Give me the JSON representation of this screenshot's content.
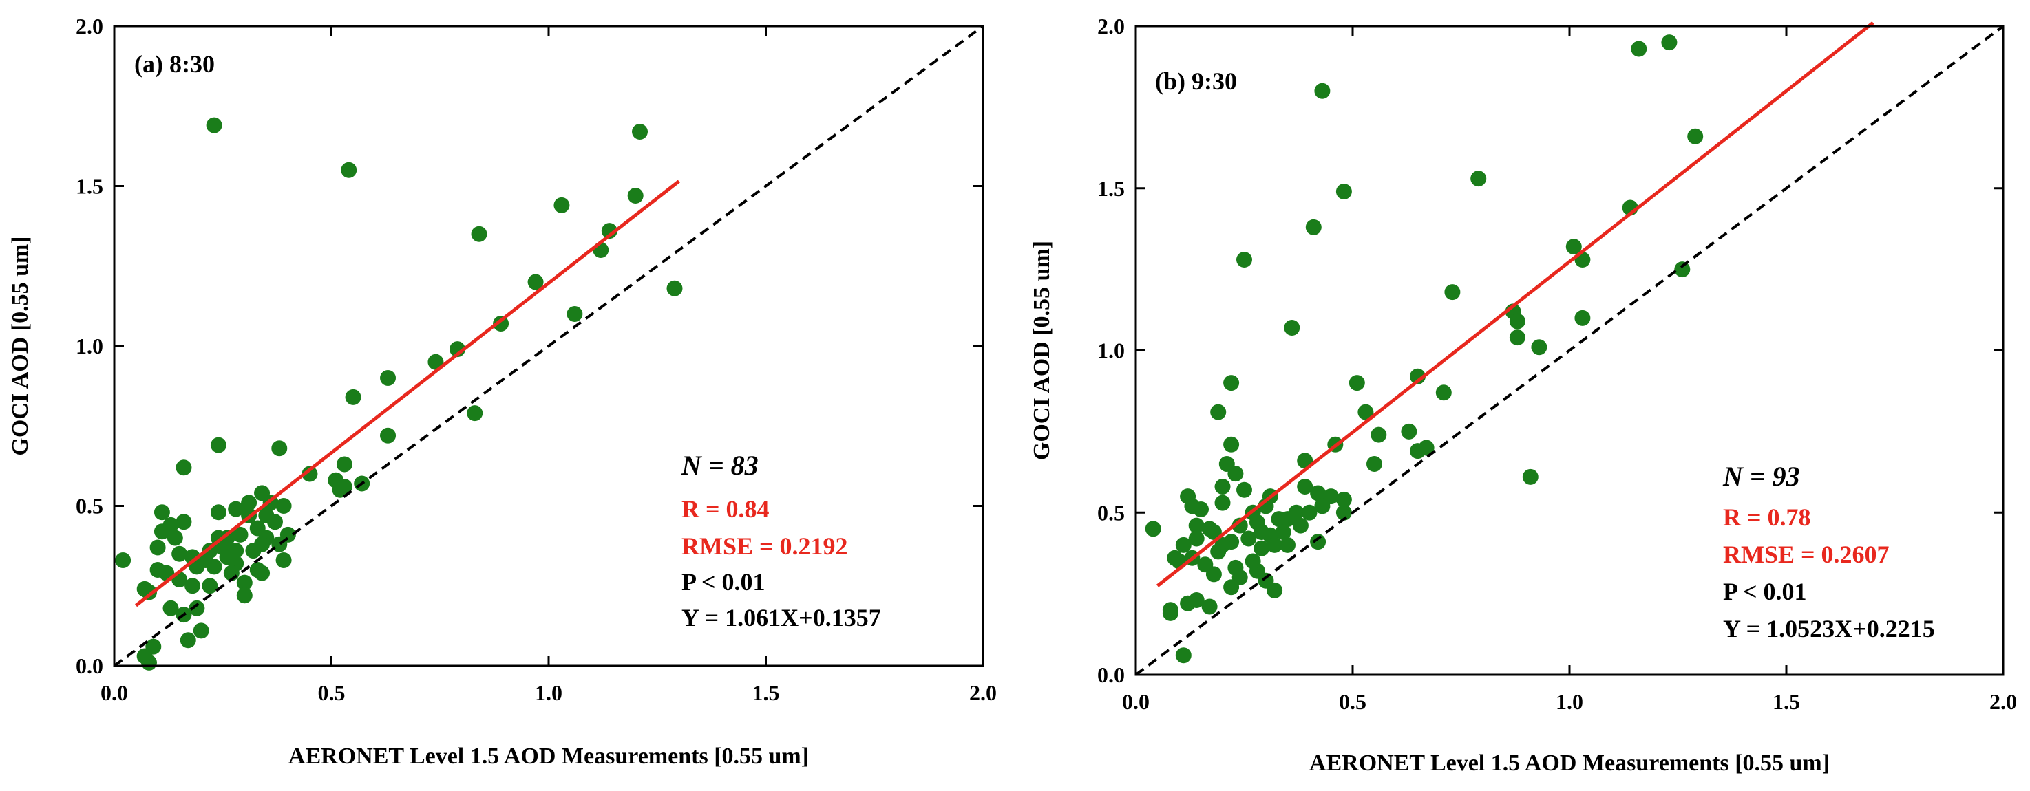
{
  "figure": {
    "colors": {
      "point": "#1a7d1a",
      "fit_line": "#e8281e",
      "one_to_one": "#000000",
      "axes": "#000000"
    }
  },
  "chart_data": [
    {
      "type": "scatter",
      "panel_label": "(a) 8:30",
      "xlabel": "AERONET Level 1.5 AOD Measurements [0.55 um]",
      "ylabel": "GOCI AOD [0.55 um]",
      "xlim": [
        0.0,
        2.0
      ],
      "ylim": [
        0.0,
        2.0
      ],
      "xticks": [
        "0.0",
        "0.5",
        "1.0",
        "1.5",
        "2.0"
      ],
      "yticks": [
        "0.0",
        "0.5",
        "1.0",
        "1.5",
        "2.0"
      ],
      "stats": {
        "n": "N = 83",
        "r": "R = 0.84",
        "rmse": "RMSE = 0.2192",
        "p": "P < 0.01",
        "equation": "Y = 1.061X+0.1357"
      },
      "fit": {
        "slope": 1.061,
        "intercept": 0.1357,
        "x_range": [
          0.05,
          1.3
        ]
      },
      "one_to_one": [
        0.0,
        2.0
      ],
      "points": [
        [
          0.23,
          1.69
        ],
        [
          0.54,
          1.55
        ],
        [
          1.21,
          1.67
        ],
        [
          1.2,
          1.47
        ],
        [
          1.03,
          1.44
        ],
        [
          1.14,
          1.36
        ],
        [
          1.12,
          1.3
        ],
        [
          0.84,
          1.35
        ],
        [
          1.29,
          1.18
        ],
        [
          0.97,
          1.2
        ],
        [
          1.06,
          1.1
        ],
        [
          0.89,
          1.07
        ],
        [
          0.79,
          0.99
        ],
        [
          0.74,
          0.95
        ],
        [
          0.63,
          0.9
        ],
        [
          0.55,
          0.84
        ],
        [
          0.83,
          0.79
        ],
        [
          0.63,
          0.72
        ],
        [
          0.38,
          0.68
        ],
        [
          0.24,
          0.69
        ],
        [
          0.16,
          0.62
        ],
        [
          0.45,
          0.6
        ],
        [
          0.53,
          0.63
        ],
        [
          0.51,
          0.58
        ],
        [
          0.57,
          0.57
        ],
        [
          0.53,
          0.56
        ],
        [
          0.52,
          0.55
        ],
        [
          0.34,
          0.54
        ],
        [
          0.36,
          0.51
        ],
        [
          0.39,
          0.5
        ],
        [
          0.31,
          0.51
        ],
        [
          0.28,
          0.49
        ],
        [
          0.24,
          0.48
        ],
        [
          0.11,
          0.48
        ],
        [
          0.35,
          0.47
        ],
        [
          0.37,
          0.45
        ],
        [
          0.16,
          0.45
        ],
        [
          0.13,
          0.44
        ],
        [
          0.11,
          0.42
        ],
        [
          0.14,
          0.4
        ],
        [
          0.24,
          0.4
        ],
        [
          0.26,
          0.4
        ],
        [
          0.29,
          0.41
        ],
        [
          0.33,
          0.43
        ],
        [
          0.35,
          0.4
        ],
        [
          0.4,
          0.41
        ],
        [
          0.38,
          0.38
        ],
        [
          0.34,
          0.38
        ],
        [
          0.32,
          0.36
        ],
        [
          0.25,
          0.37
        ],
        [
          0.22,
          0.36
        ],
        [
          0.18,
          0.34
        ],
        [
          0.21,
          0.33
        ],
        [
          0.15,
          0.35
        ],
        [
          0.1,
          0.37
        ],
        [
          0.02,
          0.33
        ],
        [
          0.26,
          0.34
        ],
        [
          0.28,
          0.32
        ],
        [
          0.33,
          0.3
        ],
        [
          0.39,
          0.33
        ],
        [
          0.19,
          0.31
        ],
        [
          0.23,
          0.31
        ],
        [
          0.12,
          0.29
        ],
        [
          0.1,
          0.3
        ],
        [
          0.27,
          0.29
        ],
        [
          0.34,
          0.29
        ],
        [
          0.15,
          0.27
        ],
        [
          0.18,
          0.25
        ],
        [
          0.3,
          0.26
        ],
        [
          0.22,
          0.25
        ],
        [
          0.07,
          0.24
        ],
        [
          0.08,
          0.23
        ],
        [
          0.3,
          0.22
        ],
        [
          0.13,
          0.18
        ],
        [
          0.19,
          0.18
        ],
        [
          0.16,
          0.16
        ],
        [
          0.2,
          0.11
        ],
        [
          0.17,
          0.08
        ],
        [
          0.09,
          0.06
        ],
        [
          0.07,
          0.03
        ],
        [
          0.08,
          0.01
        ],
        [
          0.28,
          0.36
        ],
        [
          0.31,
          0.47
        ]
      ]
    },
    {
      "type": "scatter",
      "panel_label": "(b) 9:30",
      "xlabel": "AERONET Level 1.5 AOD Measurements [0.55 um]",
      "ylabel": "GOCI AOD [0.55 um]",
      "xlim": [
        0.0,
        2.0
      ],
      "ylim": [
        0.0,
        2.0
      ],
      "xticks": [
        "0.0",
        "0.5",
        "1.0",
        "1.5",
        "2.0"
      ],
      "yticks": [
        "0.0",
        "0.5",
        "1.0",
        "1.5",
        "2.0"
      ],
      "stats": {
        "n": "N = 93",
        "r": "R = 0.78",
        "rmse": "RMSE = 0.2607",
        "p": "P < 0.01",
        "equation": "Y = 1.0523X+0.2215"
      },
      "fit": {
        "slope": 1.0523,
        "intercept": 0.2215,
        "x_range": [
          0.05,
          1.7
        ]
      },
      "one_to_one": [
        0.0,
        2.0
      ],
      "points": [
        [
          1.16,
          1.93
        ],
        [
          1.23,
          1.95
        ],
        [
          0.43,
          1.8
        ],
        [
          0.79,
          1.53
        ],
        [
          0.48,
          1.49
        ],
        [
          1.29,
          1.66
        ],
        [
          1.14,
          1.44
        ],
        [
          0.41,
          1.38
        ],
        [
          1.01,
          1.32
        ],
        [
          1.03,
          1.28
        ],
        [
          0.25,
          1.28
        ],
        [
          1.26,
          1.25
        ],
        [
          0.73,
          1.18
        ],
        [
          0.87,
          1.12
        ],
        [
          0.88,
          1.09
        ],
        [
          1.03,
          1.1
        ],
        [
          0.36,
          1.07
        ],
        [
          0.88,
          1.04
        ],
        [
          0.93,
          1.01
        ],
        [
          0.22,
          0.9
        ],
        [
          0.51,
          0.9
        ],
        [
          0.65,
          0.92
        ],
        [
          0.71,
          0.87
        ],
        [
          0.19,
          0.81
        ],
        [
          0.53,
          0.81
        ],
        [
          0.56,
          0.74
        ],
        [
          0.63,
          0.75
        ],
        [
          0.67,
          0.7
        ],
        [
          0.65,
          0.69
        ],
        [
          0.46,
          0.71
        ],
        [
          0.22,
          0.71
        ],
        [
          0.39,
          0.66
        ],
        [
          0.21,
          0.65
        ],
        [
          0.55,
          0.65
        ],
        [
          0.91,
          0.61
        ],
        [
          0.23,
          0.62
        ],
        [
          0.2,
          0.58
        ],
        [
          0.25,
          0.57
        ],
        [
          0.39,
          0.58
        ],
        [
          0.31,
          0.55
        ],
        [
          0.42,
          0.56
        ],
        [
          0.45,
          0.55
        ],
        [
          0.12,
          0.55
        ],
        [
          0.2,
          0.53
        ],
        [
          0.13,
          0.52
        ],
        [
          0.3,
          0.52
        ],
        [
          0.48,
          0.54
        ],
        [
          0.43,
          0.52
        ],
        [
          0.37,
          0.5
        ],
        [
          0.4,
          0.5
        ],
        [
          0.48,
          0.5
        ],
        [
          0.15,
          0.51
        ],
        [
          0.33,
          0.48
        ],
        [
          0.28,
          0.47
        ],
        [
          0.24,
          0.46
        ],
        [
          0.14,
          0.46
        ],
        [
          0.17,
          0.45
        ],
        [
          0.29,
          0.44
        ],
        [
          0.38,
          0.46
        ],
        [
          0.31,
          0.43
        ],
        [
          0.26,
          0.42
        ],
        [
          0.22,
          0.41
        ],
        [
          0.2,
          0.4
        ],
        [
          0.11,
          0.4
        ],
        [
          0.14,
          0.42
        ],
        [
          0.19,
          0.38
        ],
        [
          0.29,
          0.39
        ],
        [
          0.32,
          0.4
        ],
        [
          0.35,
          0.4
        ],
        [
          0.42,
          0.41
        ],
        [
          0.09,
          0.36
        ],
        [
          0.1,
          0.35
        ],
        [
          0.16,
          0.34
        ],
        [
          0.23,
          0.33
        ],
        [
          0.28,
          0.32
        ],
        [
          0.18,
          0.31
        ],
        [
          0.24,
          0.3
        ],
        [
          0.3,
          0.29
        ],
        [
          0.22,
          0.27
        ],
        [
          0.32,
          0.26
        ],
        [
          0.14,
          0.23
        ],
        [
          0.12,
          0.22
        ],
        [
          0.17,
          0.21
        ],
        [
          0.08,
          0.2
        ],
        [
          0.08,
          0.19
        ],
        [
          0.11,
          0.06
        ],
        [
          0.04,
          0.45
        ],
        [
          0.27,
          0.35
        ],
        [
          0.35,
          0.48
        ],
        [
          0.34,
          0.44
        ],
        [
          0.27,
          0.5
        ],
        [
          0.18,
          0.44
        ],
        [
          0.13,
          0.36
        ]
      ]
    }
  ]
}
